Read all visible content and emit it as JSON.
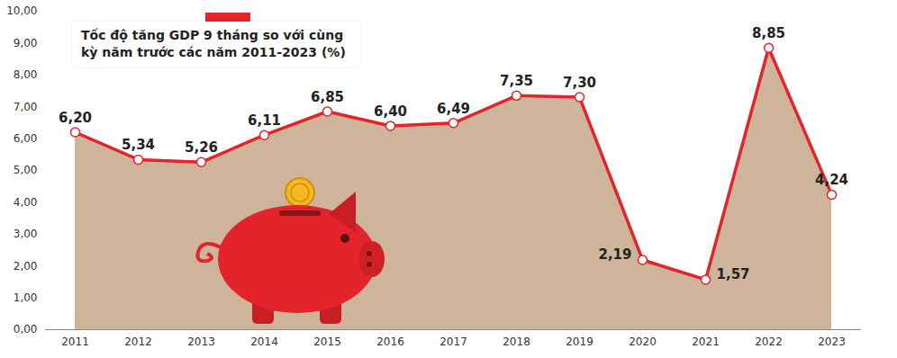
{
  "chart_data": {
    "type": "line",
    "title": "Tốc độ tăng GDP 9 tháng so với cùng kỳ năm trước các năm 2011-2023 (%)",
    "categories": [
      "2011",
      "2012",
      "2013",
      "2014",
      "2015",
      "2016",
      "2017",
      "2018",
      "2019",
      "2020",
      "2021",
      "2022",
      "2023"
    ],
    "values": [
      6.2,
      5.34,
      5.26,
      6.11,
      6.85,
      6.4,
      6.49,
      7.35,
      7.3,
      2.19,
      1.57,
      8.85,
      4.24
    ],
    "value_labels": [
      "6,20",
      "5,34",
      "5,26",
      "6,11",
      "6,85",
      "6,40",
      "6,49",
      "7,35",
      "7,30",
      "2,19",
      "1,57",
      "8,85",
      "4,24"
    ],
    "color": "#e3242b",
    "marker": "circle",
    "data_labels": true,
    "grid": false,
    "ylim": [
      0,
      10
    ],
    "yticks": [
      {
        "value": 0,
        "label": "0,00"
      },
      {
        "value": 1,
        "label": "1,00"
      },
      {
        "value": 2,
        "label": "2,00"
      },
      {
        "value": 3,
        "label": "3,00"
      },
      {
        "value": 4,
        "label": "4,00"
      },
      {
        "value": 5,
        "label": "5,00"
      },
      {
        "value": 6,
        "label": "6,00"
      },
      {
        "value": 7,
        "label": "7,00"
      },
      {
        "value": 8,
        "label": "8,00"
      },
      {
        "value": 9,
        "label": "9,00"
      },
      {
        "value": 10,
        "label": "10,00"
      }
    ]
  }
}
